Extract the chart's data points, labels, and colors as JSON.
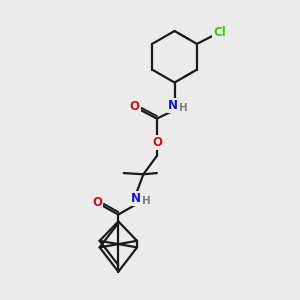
{
  "bg_color": "#ebebeb",
  "atom_colors": {
    "C": "#000000",
    "N": "#1414cc",
    "O": "#cc1414",
    "Cl": "#33cc00",
    "H": "#808080"
  },
  "bond_color": "#1a1a1a",
  "bond_width": 1.6,
  "fig_width": 3.0,
  "fig_height": 3.0,
  "dpi": 100,
  "xlim": [
    0,
    10
  ],
  "ylim": [
    0,
    12
  ]
}
